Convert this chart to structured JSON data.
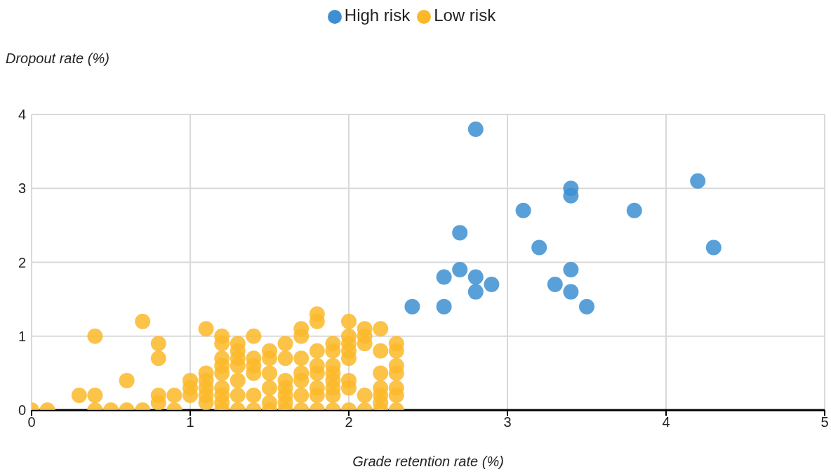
{
  "chart_data": {
    "type": "scatter",
    "xlabel": "Grade retention rate (%)",
    "ylabel": "Dropout rate (%)",
    "xlim": [
      0,
      5
    ],
    "xticks": [
      0,
      1,
      2,
      3,
      4,
      5
    ],
    "ylim": [
      0,
      4
    ],
    "yticks": [
      0,
      1,
      2,
      3,
      4
    ],
    "grid": true,
    "legend": "top",
    "marker": "circle",
    "series": [
      {
        "name": "High risk",
        "color": "#3d8fd1",
        "x": [
          2.4,
          2.6,
          2.6,
          2.7,
          2.7,
          2.8,
          2.8,
          2.8,
          2.9,
          3.1,
          3.2,
          3.3,
          3.4,
          3.4,
          3.4,
          3.4,
          3.5,
          3.8,
          4.2,
          4.3
        ],
        "values": [
          1.4,
          1.8,
          1.4,
          2.4,
          1.9,
          3.8,
          1.8,
          1.6,
          1.7,
          2.7,
          2.2,
          1.7,
          3.0,
          2.9,
          1.9,
          1.6,
          1.4,
          2.7,
          3.1,
          2.2
        ]
      },
      {
        "name": "Low risk",
        "color": "#fbb829",
        "x": [
          0,
          0.1,
          0.3,
          0.4,
          0.4,
          0.4,
          0.5,
          0.6,
          0.6,
          0.7,
          0.7,
          0.8,
          0.8,
          0.8,
          0.8,
          0.9,
          0.9,
          1.0,
          1.0,
          1.0,
          1.1,
          1.1,
          1.1,
          1.1,
          1.1,
          1.1,
          1.2,
          1.2,
          1.2,
          1.2,
          1.2,
          1.2,
          1.2,
          1.2,
          1.2,
          1.3,
          1.3,
          1.3,
          1.3,
          1.3,
          1.3,
          1.3,
          1.4,
          1.4,
          1.4,
          1.4,
          1.4,
          1.4,
          1.5,
          1.5,
          1.5,
          1.5,
          1.5,
          1.5,
          1.6,
          1.6,
          1.6,
          1.6,
          1.6,
          1.6,
          1.6,
          1.7,
          1.7,
          1.7,
          1.7,
          1.7,
          1.7,
          1.7,
          1.8,
          1.8,
          1.8,
          1.8,
          1.8,
          1.8,
          1.8,
          1.8,
          1.9,
          1.9,
          1.9,
          1.9,
          1.9,
          1.9,
          1.9,
          1.9,
          2.0,
          2.0,
          2.0,
          2.0,
          2.0,
          2.0,
          2.0,
          2.0,
          2.1,
          2.1,
          2.1,
          2.1,
          2.1,
          2.2,
          2.2,
          2.2,
          2.2,
          2.2,
          2.2,
          2.2,
          2.3,
          2.3,
          2.3,
          2.3,
          2.3,
          2.3,
          2.3
        ],
        "values": [
          0,
          0,
          0.2,
          1.0,
          0.2,
          0,
          0,
          0.4,
          0,
          1.2,
          0,
          0.9,
          0.7,
          0.2,
          0.1,
          0.2,
          0,
          0.4,
          0.3,
          0.2,
          1.1,
          0.5,
          0.4,
          0.3,
          0.2,
          0.1,
          1.0,
          0.9,
          0.7,
          0.6,
          0.5,
          0.3,
          0.2,
          0.1,
          0,
          0.9,
          0.8,
          0.7,
          0.6,
          0.4,
          0.2,
          0,
          1.0,
          0.7,
          0.6,
          0.5,
          0.2,
          0,
          0.8,
          0.7,
          0.5,
          0.3,
          0.1,
          0,
          0.9,
          0.7,
          0.4,
          0.3,
          0.2,
          0.1,
          0,
          1.1,
          1.0,
          0.7,
          0.5,
          0.4,
          0.2,
          0,
          1.3,
          1.2,
          0.8,
          0.6,
          0.5,
          0.3,
          0.2,
          0,
          0.9,
          0.8,
          0.6,
          0.5,
          0.4,
          0.3,
          0.2,
          0,
          1.2,
          1.0,
          0.9,
          0.8,
          0.7,
          0.4,
          0.3,
          0,
          1.1,
          1.0,
          0.9,
          0.2,
          0,
          1.1,
          0.8,
          0.5,
          0.3,
          0.2,
          0.1,
          0,
          0.9,
          0.8,
          0.6,
          0.5,
          0.3,
          0.2,
          0
        ]
      }
    ]
  }
}
